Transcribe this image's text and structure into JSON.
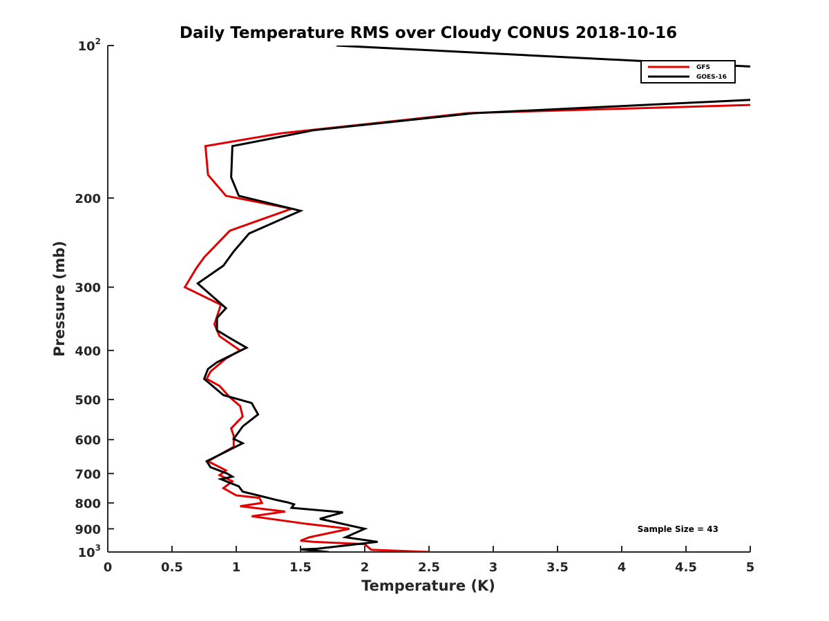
{
  "chart_data": {
    "type": "line",
    "title": "Daily Temperature RMS over Cloudy CONUS 2018-10-16",
    "xlabel": "Temperature (K)",
    "ylabel": "Pressure (mb)",
    "xlim": [
      0,
      5
    ],
    "ylim": [
      100,
      1000
    ],
    "y_scale": "log",
    "y_reversed": true,
    "x_ticks": [
      "0",
      "0.5",
      "1",
      "1.5",
      "2",
      "2.5",
      "3",
      "3.5",
      "4",
      "4.5",
      "5"
    ],
    "y_ticks": [
      {
        "value": 100,
        "base": "10",
        "exp": "2"
      },
      {
        "value": 200,
        "label": "200"
      },
      {
        "value": 300,
        "label": "300"
      },
      {
        "value": 400,
        "label": "400"
      },
      {
        "value": 500,
        "label": "500"
      },
      {
        "value": 600,
        "label": "600"
      },
      {
        "value": 700,
        "label": "700"
      },
      {
        "value": 800,
        "label": "800"
      },
      {
        "value": 900,
        "label": "900"
      },
      {
        "value": 1000,
        "base": "10",
        "exp": "3"
      }
    ],
    "grid": false,
    "legend_position": "top-right",
    "annotation": "Sample Size = 43",
    "series": [
      {
        "name": "GFS",
        "color": "#e00000",
        "points": [
          [
            2.5,
            1000
          ],
          [
            2.05,
            990
          ],
          [
            2.0,
            965
          ],
          [
            1.6,
            955
          ],
          [
            1.5,
            950
          ],
          [
            1.57,
            935
          ],
          [
            1.88,
            900
          ],
          [
            1.55,
            880
          ],
          [
            1.12,
            850
          ],
          [
            1.38,
            832
          ],
          [
            1.03,
            812
          ],
          [
            1.2,
            800
          ],
          [
            1.18,
            782
          ],
          [
            1.0,
            773
          ],
          [
            0.9,
            748
          ],
          [
            0.97,
            725
          ],
          [
            0.87,
            705
          ],
          [
            0.92,
            690
          ],
          [
            0.78,
            662
          ],
          [
            0.98,
            620
          ],
          [
            0.98,
            590
          ],
          [
            0.96,
            570
          ],
          [
            1.05,
            540
          ],
          [
            1.03,
            515
          ],
          [
            0.95,
            495
          ],
          [
            0.87,
            470
          ],
          [
            0.77,
            455
          ],
          [
            0.8,
            440
          ],
          [
            0.92,
            415
          ],
          [
            1.03,
            400
          ],
          [
            0.87,
            375
          ],
          [
            0.83,
            355
          ],
          [
            0.88,
            325
          ],
          [
            0.6,
            300
          ],
          [
            0.69,
            275
          ],
          [
            0.75,
            262
          ],
          [
            0.95,
            232
          ],
          [
            1.43,
            210
          ],
          [
            0.92,
            198
          ],
          [
            0.78,
            180
          ],
          [
            0.76,
            158
          ],
          [
            1.35,
            149
          ],
          [
            2.8,
            136
          ],
          [
            5.0,
            131
          ]
        ]
      },
      {
        "name": "GOES-16",
        "color": "#000000",
        "points": [
          [
            1.72,
            1000
          ],
          [
            1.5,
            988
          ],
          [
            1.63,
            985
          ],
          [
            2.1,
            955
          ],
          [
            1.85,
            935
          ],
          [
            2.0,
            900
          ],
          [
            1.65,
            860
          ],
          [
            1.83,
            835
          ],
          [
            1.43,
            818
          ],
          [
            1.45,
            805
          ],
          [
            1.4,
            798
          ],
          [
            1.32,
            790
          ],
          [
            1.05,
            760
          ],
          [
            1.02,
            742
          ],
          [
            0.88,
            718
          ],
          [
            0.97,
            710
          ],
          [
            0.93,
            700
          ],
          [
            0.8,
            680
          ],
          [
            0.77,
            662
          ],
          [
            1.05,
            610
          ],
          [
            0.98,
            598
          ],
          [
            1.05,
            565
          ],
          [
            1.17,
            535
          ],
          [
            1.12,
            508
          ],
          [
            0.9,
            490
          ],
          [
            0.75,
            455
          ],
          [
            0.78,
            435
          ],
          [
            0.85,
            422
          ],
          [
            1.08,
            395
          ],
          [
            0.95,
            378
          ],
          [
            0.85,
            365
          ],
          [
            0.85,
            345
          ],
          [
            0.92,
            330
          ],
          [
            0.7,
            295
          ],
          [
            0.9,
            272
          ],
          [
            0.98,
            255
          ],
          [
            1.1,
            235
          ],
          [
            1.5,
            212
          ],
          [
            1.02,
            198
          ],
          [
            0.96,
            182
          ],
          [
            0.97,
            158
          ],
          [
            1.6,
            147
          ],
          [
            2.85,
            136
          ],
          [
            5.0,
            128
          ]
        ],
        "extra_segments": [
          [
            [
              1.78,
              100
            ],
            [
              5.0,
              110
            ]
          ]
        ]
      }
    ]
  }
}
